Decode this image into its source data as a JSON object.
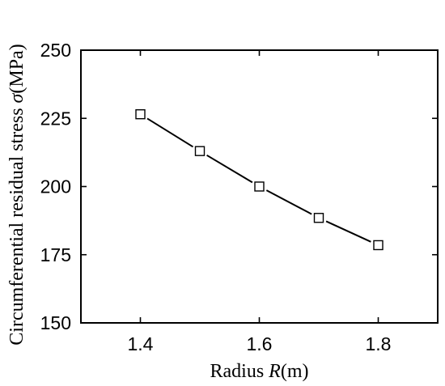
{
  "chart_data": {
    "type": "line",
    "title": "",
    "xlabel": {
      "prefix": "Radius ",
      "symbol": "R",
      "suffix": "(m)"
    },
    "ylabel": {
      "prefix": "Circumferential residual stress ",
      "symbol": "σ",
      "suffix": "(MPa)"
    },
    "xlim": [
      1.3,
      1.9
    ],
    "ylim": [
      150,
      250
    ],
    "x_ticks": [
      1.4,
      1.6,
      1.8
    ],
    "x_tick_labels": [
      "1.4",
      "1.6",
      "1.8"
    ],
    "y_ticks": [
      150,
      175,
      200,
      225,
      250
    ],
    "y_tick_labels": [
      "150",
      "175",
      "200",
      "225",
      "250"
    ],
    "grid": false,
    "legend": "none",
    "series": [
      {
        "marker": "open-square",
        "line": "solid",
        "color": "#000000",
        "x": [
          1.4,
          1.5,
          1.6,
          1.7,
          1.8
        ],
        "y": [
          226.5,
          213,
          200,
          188.5,
          178.5
        ]
      }
    ]
  }
}
